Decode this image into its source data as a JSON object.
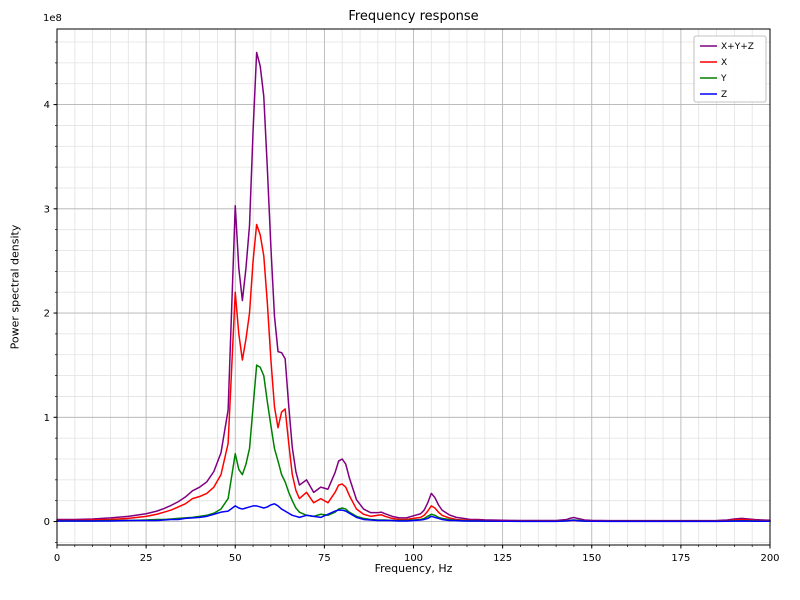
{
  "chart_data": {
    "type": "line",
    "title": "Frequency response",
    "xlabel": "Frequency, Hz",
    "ylabel": "Power spectral density",
    "y_offset_text": "1e8",
    "xlim": [
      0,
      200
    ],
    "ylim_1e8": [
      -0.225,
      4.725
    ],
    "xticks": [
      0,
      25,
      50,
      75,
      100,
      125,
      150,
      175,
      200
    ],
    "yticks_1e8": [
      0,
      1,
      2,
      3,
      4
    ],
    "grid": {
      "visible": true,
      "x_minor_step": 5,
      "y_minor_step": 0.2,
      "major_color": "#b5b5b5",
      "minor_color": "#e2e2e2"
    },
    "legend_position": "upper right",
    "x": [
      0,
      5,
      10,
      15,
      20,
      25,
      28,
      30,
      32,
      34,
      36,
      38,
      40,
      42,
      44,
      46,
      48,
      50,
      51,
      52,
      53,
      54,
      55,
      56,
      57,
      58,
      59,
      60,
      61,
      62,
      63,
      64,
      65,
      66,
      67,
      68,
      70,
      72,
      74,
      76,
      78,
      79,
      80,
      81,
      82,
      84,
      86,
      88,
      90,
      91,
      92,
      94,
      96,
      98,
      100,
      102,
      103,
      104,
      105,
      106,
      107,
      108,
      110,
      112,
      114,
      116,
      118,
      120,
      125,
      130,
      135,
      140,
      143,
      144,
      145,
      146,
      148,
      150,
      155,
      160,
      165,
      170,
      175,
      180,
      185,
      188,
      190,
      192,
      194,
      196,
      198,
      200
    ],
    "series": [
      {
        "name": "X+Y+Z",
        "color": "#800080",
        "values_1e8": [
          0.02,
          0.02,
          0.025,
          0.035,
          0.05,
          0.075,
          0.1,
          0.125,
          0.155,
          0.19,
          0.235,
          0.295,
          0.33,
          0.38,
          0.48,
          0.66,
          1.07,
          3.03,
          2.43,
          2.12,
          2.43,
          2.84,
          3.75,
          4.5,
          4.37,
          4.08,
          3.39,
          2.63,
          1.97,
          1.63,
          1.62,
          1.56,
          1.11,
          0.71,
          0.48,
          0.35,
          0.4,
          0.28,
          0.33,
          0.31,
          0.47,
          0.58,
          0.6,
          0.55,
          0.42,
          0.21,
          0.12,
          0.085,
          0.085,
          0.09,
          0.075,
          0.05,
          0.035,
          0.035,
          0.055,
          0.075,
          0.11,
          0.18,
          0.27,
          0.23,
          0.16,
          0.11,
          0.065,
          0.04,
          0.03,
          0.02,
          0.02,
          0.016,
          0.012,
          0.01,
          0.01,
          0.01,
          0.02,
          0.032,
          0.039,
          0.03,
          0.015,
          0.011,
          0.009,
          0.009,
          0.009,
          0.009,
          0.009,
          0.009,
          0.01,
          0.015,
          0.025,
          0.03,
          0.025,
          0.018,
          0.015,
          0.013
        ]
      },
      {
        "name": "X",
        "color": "#ff0000",
        "values_1e8": [
          0.01,
          0.01,
          0.015,
          0.02,
          0.03,
          0.05,
          0.07,
          0.09,
          0.11,
          0.14,
          0.17,
          0.22,
          0.24,
          0.27,
          0.33,
          0.45,
          0.75,
          2.2,
          1.8,
          1.55,
          1.75,
          2.0,
          2.5,
          2.85,
          2.75,
          2.55,
          2.1,
          1.55,
          1.1,
          0.9,
          1.05,
          1.08,
          0.75,
          0.45,
          0.3,
          0.22,
          0.28,
          0.18,
          0.22,
          0.18,
          0.28,
          0.35,
          0.36,
          0.33,
          0.25,
          0.12,
          0.07,
          0.05,
          0.06,
          0.065,
          0.05,
          0.03,
          0.02,
          0.02,
          0.03,
          0.04,
          0.06,
          0.1,
          0.15,
          0.13,
          0.09,
          0.06,
          0.035,
          0.02,
          0.015,
          0.01,
          0.01,
          0.008,
          0.006,
          0.005,
          0.005,
          0.005,
          0.008,
          0.01,
          0.012,
          0.01,
          0.006,
          0.005,
          0.004,
          0.004,
          0.004,
          0.004,
          0.004,
          0.004,
          0.005,
          0.008,
          0.015,
          0.018,
          0.015,
          0.01,
          0.008,
          0.006
        ]
      },
      {
        "name": "Y",
        "color": "#008000",
        "values_1e8": [
          0.005,
          0.005,
          0.005,
          0.01,
          0.01,
          0.015,
          0.02,
          0.02,
          0.025,
          0.03,
          0.035,
          0.04,
          0.05,
          0.06,
          0.08,
          0.12,
          0.22,
          0.65,
          0.5,
          0.45,
          0.55,
          0.7,
          1.1,
          1.5,
          1.48,
          1.4,
          1.15,
          0.92,
          0.7,
          0.58,
          0.45,
          0.38,
          0.28,
          0.2,
          0.13,
          0.09,
          0.06,
          0.05,
          0.07,
          0.06,
          0.09,
          0.12,
          0.13,
          0.12,
          0.09,
          0.05,
          0.03,
          0.02,
          0.015,
          0.015,
          0.015,
          0.01,
          0.01,
          0.01,
          0.015,
          0.02,
          0.03,
          0.05,
          0.07,
          0.06,
          0.04,
          0.03,
          0.02,
          0.01,
          0.01,
          0.005,
          0.005,
          0.004,
          0.003,
          0.003,
          0.003,
          0.003,
          0.006,
          0.012,
          0.015,
          0.012,
          0.005,
          0.003,
          0.003,
          0.003,
          0.003,
          0.003,
          0.003,
          0.003,
          0.003,
          0.004,
          0.006,
          0.007,
          0.006,
          0.005,
          0.004,
          0.004
        ]
      },
      {
        "name": "Z",
        "color": "#0000ff",
        "values_1e8": [
          0.005,
          0.005,
          0.005,
          0.005,
          0.01,
          0.01,
          0.01,
          0.015,
          0.02,
          0.02,
          0.03,
          0.035,
          0.04,
          0.05,
          0.07,
          0.09,
          0.1,
          0.15,
          0.13,
          0.12,
          0.13,
          0.14,
          0.15,
          0.15,
          0.14,
          0.13,
          0.14,
          0.16,
          0.17,
          0.15,
          0.12,
          0.1,
          0.08,
          0.06,
          0.05,
          0.04,
          0.06,
          0.05,
          0.04,
          0.07,
          0.1,
          0.11,
          0.11,
          0.1,
          0.08,
          0.04,
          0.02,
          0.015,
          0.01,
          0.01,
          0.01,
          0.01,
          0.005,
          0.005,
          0.01,
          0.015,
          0.02,
          0.03,
          0.05,
          0.04,
          0.03,
          0.02,
          0.01,
          0.01,
          0.005,
          0.005,
          0.005,
          0.004,
          0.003,
          0.002,
          0.002,
          0.002,
          0.006,
          0.01,
          0.012,
          0.008,
          0.004,
          0.003,
          0.002,
          0.002,
          0.002,
          0.002,
          0.002,
          0.002,
          0.002,
          0.003,
          0.004,
          0.005,
          0.004,
          0.003,
          0.003,
          0.003
        ]
      }
    ]
  }
}
